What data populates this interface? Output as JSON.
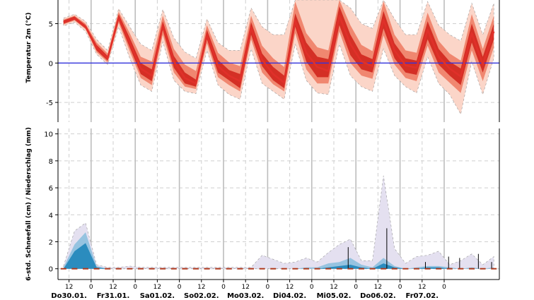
{
  "chart_data": [
    {
      "type": "area",
      "ylabel": "Temperatur 2m (°C)",
      "yticks": [
        -5,
        0,
        5
      ],
      "ylim": [
        -7.5,
        8
      ],
      "x_index": [
        0,
        1,
        2,
        3,
        4,
        5,
        6,
        7,
        8,
        9,
        10,
        11,
        12,
        13,
        14,
        15,
        16,
        17,
        18,
        19,
        20,
        21,
        22,
        23,
        24,
        25,
        26,
        27,
        28,
        29,
        30,
        31,
        32,
        33,
        34,
        35,
        36,
        37,
        38,
        39
      ],
      "zero_line": true,
      "grid": true,
      "colors": {
        "line": "#e0302a",
        "band_inner": "#d42f25",
        "band_mid": "#f08770",
        "band_outer": "#fbd5c8",
        "zero": "#3333dd"
      },
      "series": [
        {
          "values": [
            5.2,
            5.7,
            4.6,
            2.0,
            0.6,
            5.8,
            2.6,
            -0.7,
            -1.6,
            4.8,
            0.2,
            -1.9,
            -2.6,
            3.6,
            -0.4,
            -1.6,
            -2.3,
            4.5,
            0.4,
            -1.4,
            -2.5,
            5.4,
            1.3,
            -0.5,
            -1.0,
            6.0,
            2.4,
            0.2,
            -0.4,
            5.5,
            1.6,
            -0.3,
            -0.6,
            4.2,
            0.8,
            -0.7,
            -1.7,
            3.8,
            -0.2,
            4.0
          ]
        }
      ],
      "bands": [
        {
          "level": "inner",
          "lower": [
            5.0,
            5.5,
            4.4,
            1.6,
            0.3,
            5.4,
            2.0,
            -1.4,
            -2.3,
            4.2,
            -0.6,
            -2.6,
            -3.0,
            3.0,
            -1.2,
            -2.2,
            -3.2,
            3.6,
            -0.4,
            -2.2,
            -3.2,
            4.6,
            0.2,
            -1.8,
            -1.8,
            4.8,
            1.0,
            -0.8,
            -1.2,
            4.4,
            0.6,
            -1.2,
            -1.5,
            3.0,
            -0.2,
            -1.6,
            -2.8,
            2.6,
            -1.2,
            3.0
          ],
          "upper": [
            5.4,
            5.9,
            4.8,
            2.3,
            0.9,
            6.2,
            3.2,
            0.0,
            -0.8,
            5.3,
            0.9,
            -1.2,
            -2.1,
            4.2,
            0.4,
            -0.9,
            -1.4,
            5.2,
            1.2,
            -0.5,
            -1.6,
            6.3,
            2.6,
            0.8,
            0.5,
            7.2,
            3.6,
            1.1,
            0.5,
            6.6,
            2.5,
            0.6,
            0.3,
            5.3,
            1.8,
            0.2,
            -0.7,
            5.0,
            0.8,
            5.0
          ]
        },
        {
          "level": "mid",
          "lower": [
            4.9,
            5.4,
            4.3,
            1.4,
            0.1,
            5.1,
            1.5,
            -1.9,
            -2.8,
            3.6,
            -1.2,
            -3.0,
            -3.3,
            2.5,
            -1.8,
            -2.8,
            -3.6,
            3.0,
            -1.2,
            -2.7,
            -3.6,
            3.8,
            -0.8,
            -2.6,
            -2.6,
            4.0,
            0.0,
            -1.6,
            -2.0,
            3.5,
            -0.2,
            -1.9,
            -2.3,
            2.2,
            -1.2,
            -2.5,
            -3.8,
            1.6,
            -2.3,
            2.0
          ],
          "upper": [
            5.5,
            6.0,
            5.0,
            2.6,
            1.2,
            6.5,
            3.8,
            0.8,
            0.2,
            6.0,
            1.8,
            -0.2,
            -1.0,
            4.8,
            1.3,
            0.1,
            -0.4,
            6.0,
            2.2,
            0.6,
            -0.5,
            7.8,
            3.8,
            2.0,
            1.6,
            8.0,
            4.8,
            2.3,
            1.5,
            7.8,
            3.6,
            1.6,
            1.3,
            6.4,
            2.8,
            1.2,
            0.3,
            6.2,
            1.8,
            6.0
          ]
        },
        {
          "level": "outer",
          "lower": [
            4.7,
            5.2,
            4.0,
            1.1,
            -0.2,
            4.6,
            0.6,
            -2.8,
            -3.6,
            2.7,
            -2.2,
            -3.6,
            -3.9,
            1.6,
            -2.8,
            -4.0,
            -4.6,
            1.8,
            -2.6,
            -3.6,
            -4.6,
            2.4,
            -2.2,
            -3.8,
            -4.0,
            2.4,
            -1.6,
            -3.0,
            -3.6,
            1.8,
            -1.6,
            -3.0,
            -3.8,
            0.8,
            -2.6,
            -4.0,
            -6.5,
            0.2,
            -4.0,
            0.6
          ],
          "upper": [
            5.7,
            6.2,
            5.3,
            3.0,
            1.6,
            6.9,
            4.6,
            2.4,
            1.6,
            6.8,
            3.2,
            1.4,
            0.6,
            5.6,
            2.6,
            1.6,
            1.6,
            7.0,
            4.6,
            3.6,
            3.6,
            8.0,
            8.0,
            8.0,
            8.0,
            8.0,
            7.0,
            5.0,
            4.4,
            8.0,
            5.6,
            3.6,
            3.6,
            7.8,
            4.8,
            3.6,
            2.8,
            7.6,
            3.6,
            7.6
          ]
        }
      ]
    },
    {
      "type": "area",
      "ylabel": "6-std. Schneefall (cm) / Niederschlag (mm)",
      "yticks": [
        0,
        2,
        4,
        6,
        8,
        10
      ],
      "ylim": [
        -0.8,
        10.4
      ],
      "x_index": [
        0,
        1,
        2,
        3,
        4,
        5,
        6,
        7,
        8,
        9,
        10,
        11,
        12,
        13,
        14,
        15,
        16,
        17,
        18,
        19,
        20,
        21,
        22,
        23,
        24,
        25,
        26,
        27,
        28,
        29,
        30,
        31,
        32,
        33,
        34,
        35,
        36,
        37,
        38,
        39
      ],
      "grid": true,
      "colors": {
        "precip_spread": "#e4e0f0",
        "snow_outer": "#96c3e0",
        "snow_inner": "#2b8cbe",
        "median_marker": "#b03a1e",
        "spike": "#000000"
      },
      "precip_spread_upper": [
        0.2,
        2.8,
        3.4,
        0.3,
        0.1,
        0.1,
        0.2,
        0.1,
        0.1,
        0.1,
        0.1,
        0.1,
        0.1,
        0.1,
        0.1,
        0.1,
        0.1,
        0.1,
        1.0,
        0.7,
        0.4,
        0.5,
        0.8,
        0.5,
        1.2,
        1.8,
        2.2,
        0.6,
        0.6,
        6.9,
        1.5,
        0.4,
        0.9,
        1.0,
        1.3,
        0.3,
        0.6,
        1.1,
        0.3,
        0.9
      ],
      "snow_outer_upper": [
        0.1,
        1.8,
        2.7,
        0.2,
        0.0,
        0.0,
        0.0,
        0.0,
        0.0,
        0.0,
        0.0,
        0.0,
        0.0,
        0.0,
        0.0,
        0.0,
        0.0,
        0.0,
        0.0,
        0.0,
        0.0,
        0.0,
        0.1,
        0.1,
        0.4,
        0.5,
        0.8,
        0.3,
        0.1,
        0.8,
        0.2,
        0.0,
        0.1,
        0.2,
        0.2,
        0.1,
        0.0,
        0.1,
        0.0,
        0.1
      ],
      "snow_inner_upper": [
        0.0,
        1.3,
        1.9,
        0.1,
        0.0,
        0.0,
        0.0,
        0.0,
        0.0,
        0.0,
        0.0,
        0.0,
        0.0,
        0.0,
        0.0,
        0.0,
        0.0,
        0.0,
        0.0,
        0.0,
        0.0,
        0.0,
        0.0,
        0.0,
        0.1,
        0.2,
        0.3,
        0.1,
        0.0,
        0.4,
        0.1,
        0.0,
        0.0,
        0.1,
        0.1,
        0.0,
        0.0,
        0.0,
        0.0,
        0.0
      ],
      "median_markers": [
        0,
        0,
        0,
        0,
        0,
        0,
        0,
        0,
        0,
        0,
        0,
        0,
        0,
        0,
        0,
        0,
        0,
        0,
        0,
        0,
        0,
        0,
        0,
        0,
        0,
        0,
        0,
        0,
        0,
        0,
        0,
        0,
        0,
        0,
        0,
        0,
        0,
        0,
        0,
        0
      ],
      "spikes": [
        {
          "x": 25.8,
          "value": 1.6
        },
        {
          "x": 29.3,
          "value": 3.0
        },
        {
          "x": 32.8,
          "value": 0.5
        },
        {
          "x": 34.9,
          "value": 0.9
        },
        {
          "x": 35.9,
          "value": 0.8
        },
        {
          "x": 37.6,
          "value": 1.1
        },
        {
          "x": 38.8,
          "value": 0.5
        }
      ]
    }
  ],
  "x_axis": {
    "hour_ticks": [
      {
        "x": 1,
        "label": "12"
      },
      {
        "x": 3,
        "label": "0"
      },
      {
        "x": 5,
        "label": "12"
      },
      {
        "x": 7,
        "label": "0"
      },
      {
        "x": 9,
        "label": "12"
      },
      {
        "x": 11,
        "label": "0"
      },
      {
        "x": 13,
        "label": "12"
      },
      {
        "x": 15,
        "label": "0"
      },
      {
        "x": 17,
        "label": "12"
      },
      {
        "x": 19,
        "label": "0"
      },
      {
        "x": 21,
        "label": "12"
      },
      {
        "x": 23,
        "label": "0"
      },
      {
        "x": 25,
        "label": "12"
      },
      {
        "x": 27,
        "label": "0"
      },
      {
        "x": 29,
        "label": "12"
      },
      {
        "x": 31,
        "label": "0"
      },
      {
        "x": 33,
        "label": "12"
      },
      {
        "x": 35,
        "label": "0"
      }
    ],
    "day_labels": [
      {
        "x": 1,
        "label": "Do30.01."
      },
      {
        "x": 5,
        "label": "Fr31.01."
      },
      {
        "x": 9,
        "label": "Sa01.02."
      },
      {
        "x": 13,
        "label": "So02.02."
      },
      {
        "x": 17,
        "label": "Mo03.02."
      },
      {
        "x": 21,
        "label": "Di04.02."
      },
      {
        "x": 25,
        "label": "Mi05.02."
      },
      {
        "x": 29,
        "label": "Do06.02."
      },
      {
        "x": 33,
        "label": "Fr07.02."
      }
    ]
  }
}
